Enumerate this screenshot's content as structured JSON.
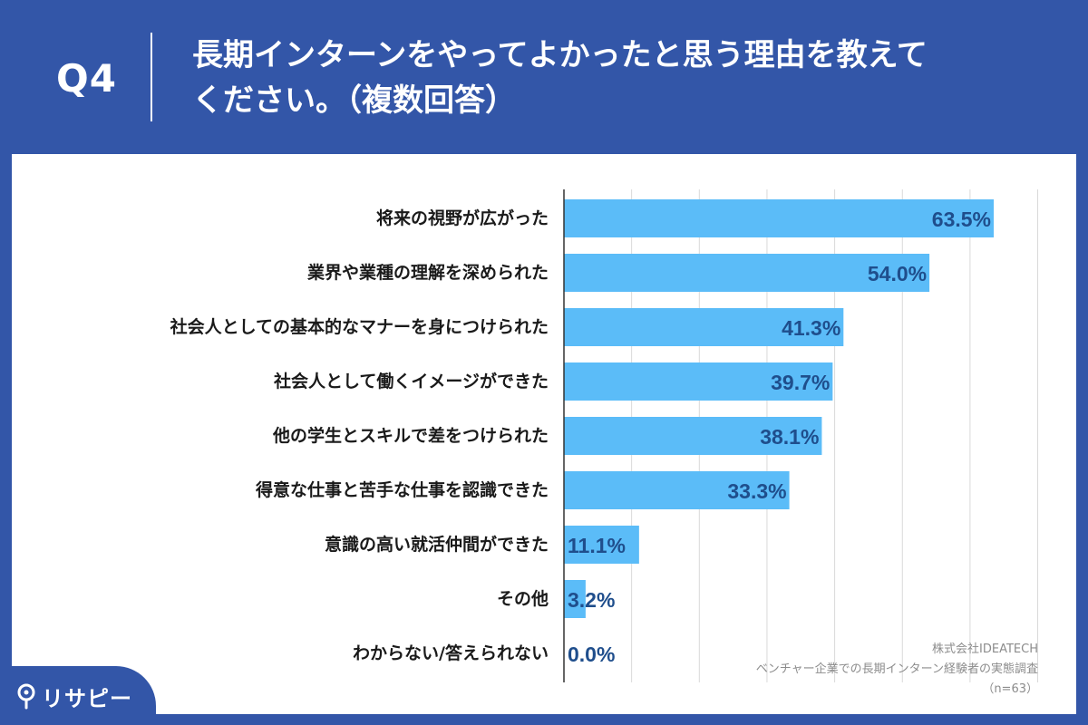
{
  "question": {
    "label": "Q4",
    "title_line1": "長期インターンをやってよかったと思う理由を教えて",
    "title_line2": "ください。（複数回答）"
  },
  "chart_data": {
    "type": "bar",
    "orientation": "horizontal",
    "categories": [
      "将来の視野が広がった",
      "業界や業種の理解を深められた",
      "社会人としての基本的なマナーを身につけられた",
      "社会人として働くイメージができた",
      "他の学生とスキルで差をつけられた",
      "得意な仕事と苦手な仕事を認識できた",
      "意識の高い就活仲間ができた",
      "その他",
      "わからない/答えられない"
    ],
    "values": [
      63.5,
      54.0,
      41.3,
      39.7,
      38.1,
      33.3,
      11.1,
      3.2,
      0.0
    ],
    "data_labels": [
      "63.5%",
      "54.0%",
      "41.3%",
      "39.7%",
      "38.1%",
      "33.3%",
      "11.1%",
      "3.2%",
      "0.0%"
    ],
    "xlim": [
      0,
      70
    ],
    "grid": true,
    "bar_color": "#5bbcf8",
    "label_color": "#1f4e8c"
  },
  "source": {
    "company": "株式会社IDEATECH",
    "survey": "ベンチャー企業での長期インターン経験者の実態調査",
    "sample": "（n=63）"
  },
  "logo": {
    "text": "リサピー",
    "icon": "pin-icon"
  },
  "colors": {
    "background": "#3356a8",
    "panel": "#ffffff"
  }
}
